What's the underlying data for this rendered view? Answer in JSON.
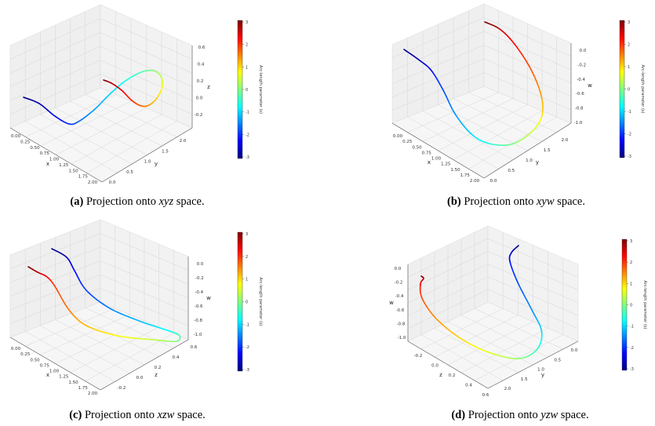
{
  "chart_data": [
    {
      "type": "line3d",
      "id": "a",
      "caption": {
        "tag": "(a)",
        "pre": "Projection onto ",
        "space": "xyz",
        "post": " space."
      },
      "axes": {
        "x": {
          "label": "x",
          "ticks": [
            "0.00",
            "0.25",
            "0.50",
            "0.75",
            "1.00",
            "1.25",
            "1.50",
            "1.75",
            "2.00"
          ],
          "range": [
            0,
            2
          ]
        },
        "y": {
          "label": "y",
          "ticks": [
            "0.0",
            "0.5",
            "1.0",
            "1.5",
            "2.0"
          ],
          "range": [
            0,
            2
          ]
        },
        "z": {
          "label": "z",
          "ticks": [
            "0.6",
            "0.4",
            "0.2",
            "0.0",
            "-0.2"
          ],
          "range": [
            -0.3,
            0.6
          ]
        }
      },
      "colorbar": {
        "label": "Arc-length parameter (s)",
        "ticks": [
          "3",
          "2",
          "1",
          "0",
          "-1",
          "-2",
          "-3"
        ],
        "range": [
          -3,
          3
        ],
        "colormap": "jet"
      },
      "grid": true
    },
    {
      "type": "line3d",
      "id": "b",
      "caption": {
        "tag": "(b)",
        "pre": "Projection onto ",
        "space": "xyw",
        "post": " space."
      },
      "axes": {
        "x": {
          "label": "x",
          "ticks": [
            "0.00",
            "0.25",
            "0.50",
            "0.75",
            "1.00",
            "1.25",
            "1.50",
            "1.75",
            "2.00"
          ],
          "range": [
            0,
            2
          ]
        },
        "y": {
          "label": "y",
          "ticks": [
            "0.0",
            "0.5",
            "1.0",
            "1.5",
            "2.0"
          ],
          "range": [
            0,
            2
          ]
        },
        "z": {
          "label": "w",
          "ticks": [
            "0.0",
            "-0.2",
            "-0.4",
            "-0.6",
            "-0.8",
            "-1.0"
          ],
          "range": [
            -1.05,
            0.05
          ]
        }
      },
      "colorbar": {
        "label": "Arc-length parameter (s)",
        "ticks": [
          "3",
          "2",
          "1",
          "0",
          "-1",
          "-2",
          "-3"
        ],
        "range": [
          -3,
          3
        ],
        "colormap": "jet"
      },
      "grid": true
    },
    {
      "type": "line3d",
      "id": "c",
      "caption": {
        "tag": "(c)",
        "pre": "Projection onto ",
        "space": "xzw",
        "post": " space."
      },
      "axes": {
        "x": {
          "label": "x",
          "ticks": [
            "0.00",
            "0.25",
            "0.50",
            "0.75",
            "1.00",
            "1.25",
            "1.50",
            "1.75",
            "2.00"
          ],
          "range": [
            0,
            2
          ]
        },
        "y": {
          "label": "z",
          "ticks": [
            "-0.2",
            "0.0",
            "0.2",
            "0.4",
            "0.6"
          ],
          "range": [
            -0.3,
            0.6
          ]
        },
        "z": {
          "label": "w",
          "ticks": [
            "0.0",
            "-0.2",
            "-0.4",
            "-0.6",
            "-0.8",
            "-1.0"
          ],
          "range": [
            -1.05,
            0.05
          ]
        }
      },
      "colorbar": {
        "label": "Arc-length parameter (s)",
        "ticks": [
          "3",
          "2",
          "1",
          "0",
          "-1",
          "-2",
          "-3"
        ],
        "range": [
          -3,
          3
        ],
        "colormap": "jet"
      },
      "grid": true
    },
    {
      "type": "line3d",
      "id": "d",
      "caption": {
        "tag": "(d)",
        "pre": "Projection onto ",
        "space": "yzw",
        "post": " space."
      },
      "axes": {
        "x": {
          "label": "z",
          "ticks": [
            "-0.2",
            "0.0",
            "0.2",
            "0.4",
            "0.6"
          ],
          "range": [
            -0.3,
            0.6
          ]
        },
        "y": {
          "label": "y",
          "ticks": [
            "2.0",
            "1.5",
            "1.0",
            "0.5",
            "0.0"
          ],
          "range": [
            0,
            2
          ]
        },
        "z": {
          "label": "w",
          "ticks": [
            "0.0",
            "-0.2",
            "-0.4",
            "-0.6",
            "-0.8",
            "-1.0"
          ],
          "range": [
            -1.05,
            0.05
          ]
        }
      },
      "colorbar": {
        "label": "Arc-length parameter (s)",
        "ticks": [
          "3",
          "2",
          "1",
          "0",
          "-1",
          "-2",
          "-3"
        ],
        "range": [
          -3,
          3
        ],
        "colormap": "jet"
      },
      "grid": true
    }
  ]
}
